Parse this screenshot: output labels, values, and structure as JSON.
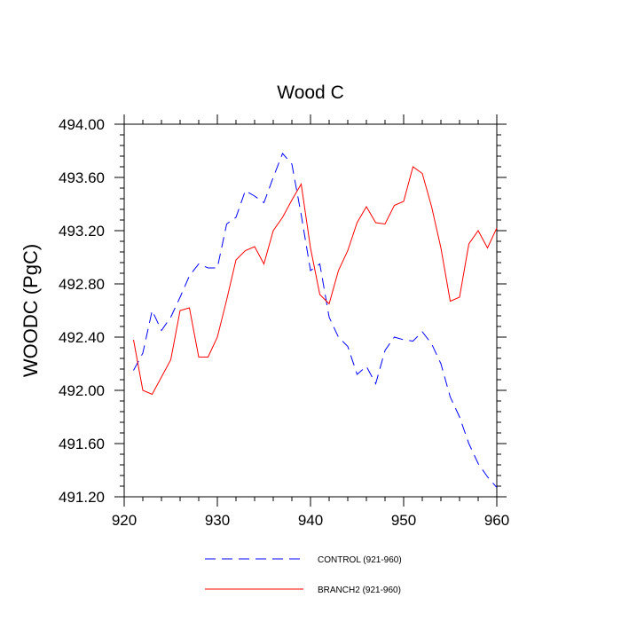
{
  "chart_data": {
    "type": "line",
    "title": "Wood C",
    "xlabel": "",
    "ylabel": "WOODC  (PgC)",
    "xlim": [
      920,
      960
    ],
    "ylim": [
      491.2,
      494.0
    ],
    "xticks": [
      920,
      930,
      940,
      950,
      960
    ],
    "xtick_labels": [
      "920",
      "930",
      "940",
      "950",
      "960"
    ],
    "yticks": [
      491.2,
      491.6,
      492.0,
      492.4,
      492.8,
      493.2,
      493.6,
      494.0
    ],
    "ytick_labels": [
      "491.20",
      "491.60",
      "492.00",
      "492.40",
      "492.80",
      "493.20",
      "493.60",
      "494.00"
    ],
    "grid": false,
    "legend_position": "bottom",
    "x": [
      921,
      922,
      923,
      924,
      925,
      926,
      927,
      928,
      929,
      930,
      931,
      932,
      933,
      934,
      935,
      936,
      937,
      938,
      939,
      940,
      941,
      942,
      943,
      944,
      945,
      946,
      947,
      948,
      949,
      950,
      951,
      952,
      953,
      954,
      955,
      956,
      957,
      958,
      959,
      960
    ],
    "series": [
      {
        "name": "CONTROL (921-960)",
        "color": "#0000ff",
        "dash": "dashed",
        "values": [
          492.15,
          492.28,
          492.6,
          492.45,
          492.55,
          492.7,
          492.86,
          492.95,
          492.92,
          492.92,
          493.25,
          493.3,
          493.5,
          493.46,
          493.41,
          493.6,
          493.78,
          493.7,
          493.32,
          492.9,
          492.95,
          492.55,
          492.4,
          492.33,
          492.12,
          492.18,
          492.05,
          492.3,
          492.4,
          492.38,
          492.37,
          492.44,
          492.35,
          492.2,
          491.95,
          491.8,
          491.6,
          491.45,
          491.35,
          491.27
        ]
      },
      {
        "name": "BRANCH2 (921-960)",
        "color": "#ff0000",
        "dash": "solid",
        "values": [
          492.38,
          492.0,
          491.97,
          492.1,
          492.23,
          492.6,
          492.62,
          492.25,
          492.25,
          492.4,
          492.68,
          492.98,
          493.05,
          493.08,
          492.95,
          493.2,
          493.3,
          493.43,
          493.55,
          493.07,
          492.72,
          492.65,
          492.9,
          493.05,
          493.26,
          493.38,
          493.26,
          493.25,
          493.39,
          493.42,
          493.68,
          493.63,
          493.38,
          493.07,
          492.67,
          492.7,
          493.1,
          493.2,
          493.07,
          493.22
        ]
      }
    ]
  }
}
